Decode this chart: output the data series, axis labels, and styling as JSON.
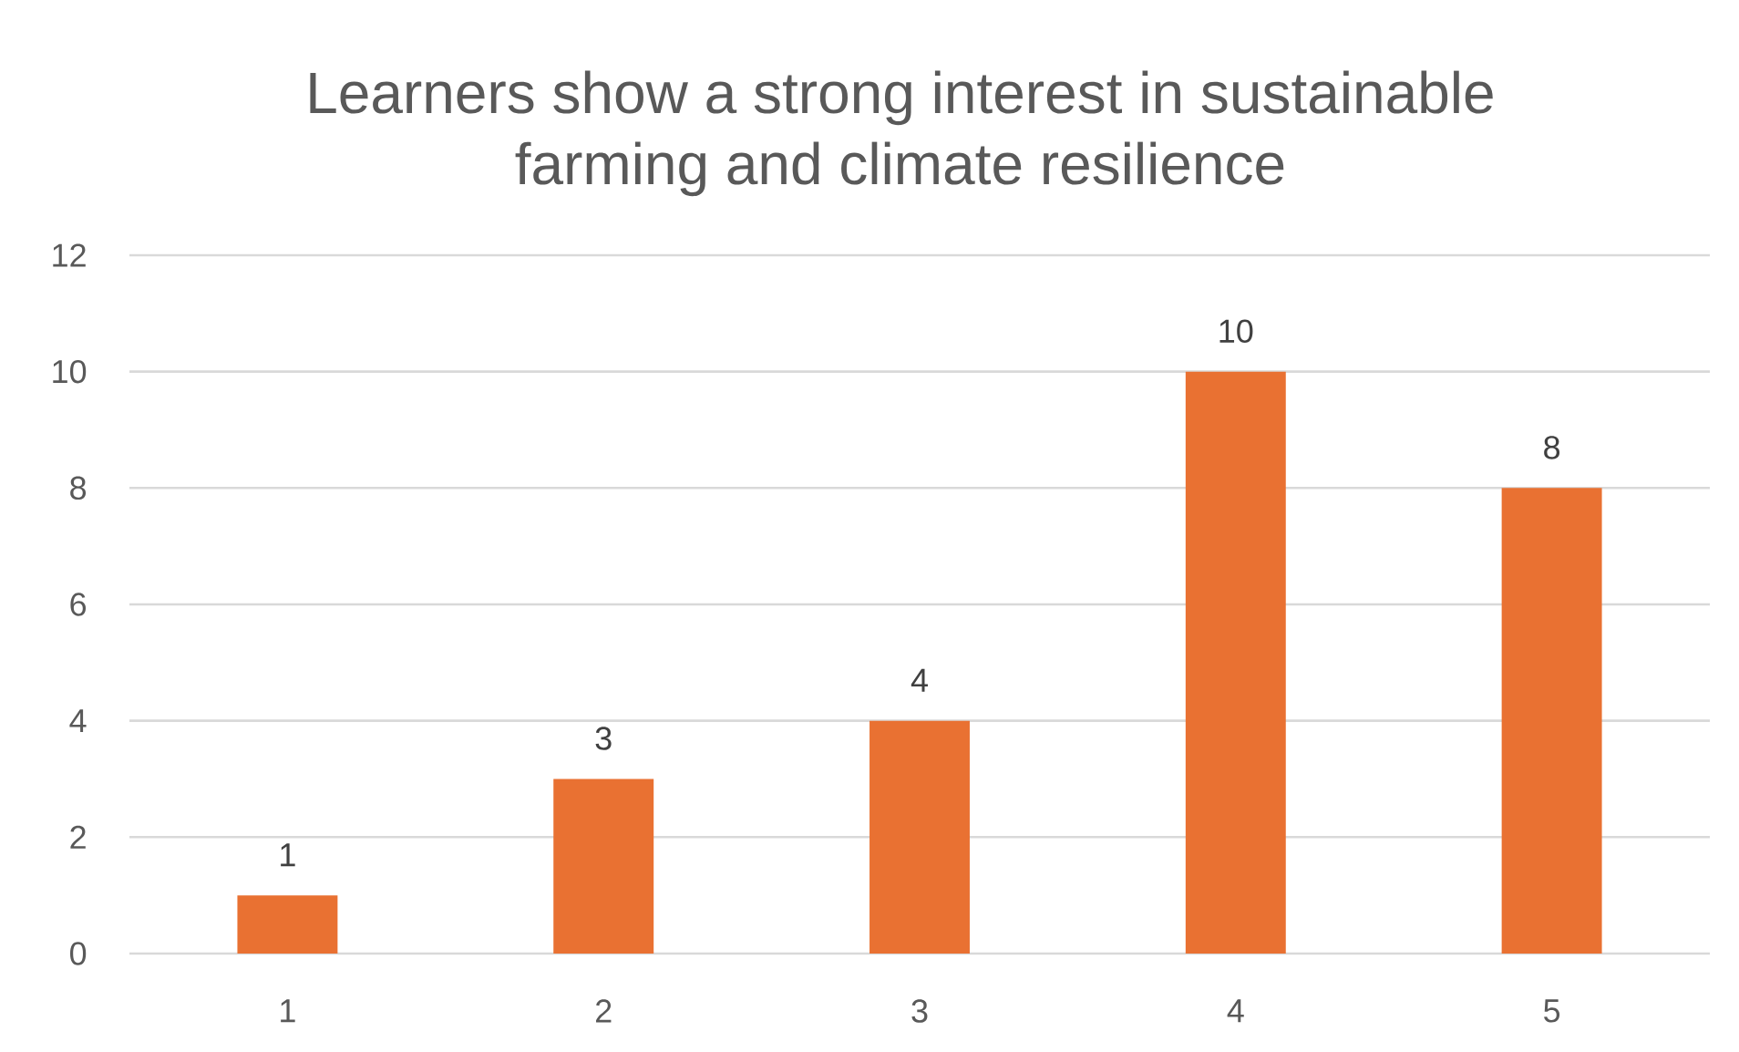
{
  "chart_data": {
    "type": "bar",
    "title": "Learners show a strong interest in sustainable farming and climate resilience",
    "categories": [
      "1",
      "2",
      "3",
      "4",
      "5"
    ],
    "values": [
      1,
      3,
      4,
      10,
      8
    ],
    "color": "#e97132",
    "ylim": [
      0,
      12
    ],
    "yticks": [
      0,
      2,
      4,
      6,
      8,
      10,
      12
    ],
    "grid": "y",
    "data_labels": true
  }
}
